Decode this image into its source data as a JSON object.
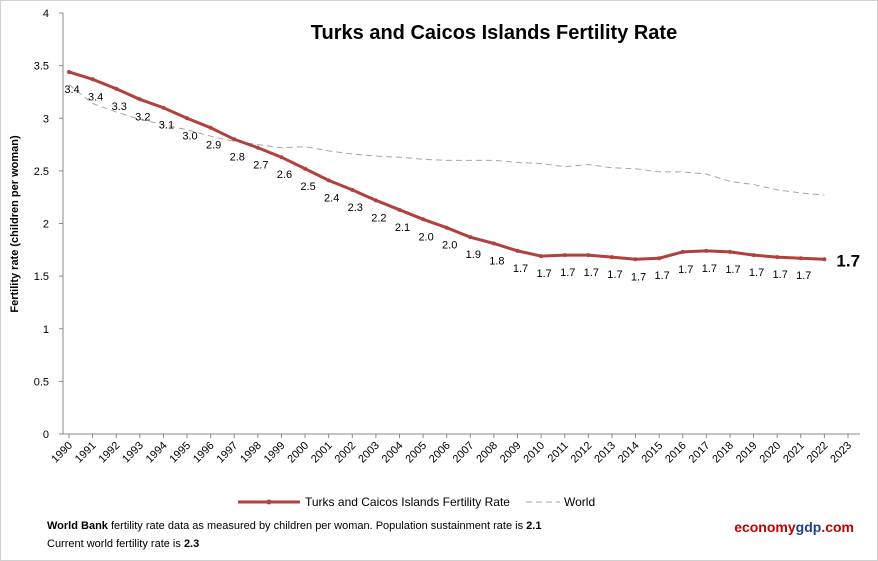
{
  "chart_data": {
    "type": "line",
    "title": "Turks and Caicos Islands Fertility Rate",
    "y_label": "Fertility rate (children per woman)",
    "x": [
      1990,
      1991,
      1992,
      1993,
      1994,
      1995,
      1996,
      1997,
      1998,
      1999,
      2000,
      2001,
      2002,
      2003,
      2004,
      2005,
      2006,
      2007,
      2008,
      2009,
      2010,
      2011,
      2012,
      2013,
      2014,
      2015,
      2016,
      2017,
      2018,
      2019,
      2020,
      2021,
      2022
    ],
    "xlim": [
      1990,
      2023
    ],
    "xticks": [
      1990,
      1991,
      1992,
      1993,
      1994,
      1995,
      1996,
      1997,
      1998,
      1999,
      2000,
      2001,
      2002,
      2003,
      2004,
      2005,
      2006,
      2007,
      2008,
      2009,
      2010,
      2011,
      2012,
      2013,
      2014,
      2015,
      2016,
      2017,
      2018,
      2019,
      2020,
      2021,
      2022,
      2023
    ],
    "ylim": [
      0,
      4
    ],
    "yticks": [
      0,
      0.5,
      1,
      1.5,
      2,
      2.5,
      3,
      3.5,
      4
    ],
    "series": [
      {
        "name": "Turks and Caicos Islands Fertility Rate",
        "color": "#b0413e",
        "values": [
          3.44,
          3.37,
          3.28,
          3.18,
          3.1,
          3.0,
          2.91,
          2.8,
          2.72,
          2.63,
          2.52,
          2.41,
          2.32,
          2.22,
          2.13,
          2.04,
          1.96,
          1.87,
          1.81,
          1.74,
          1.69,
          1.7,
          1.7,
          1.68,
          1.66,
          1.67,
          1.73,
          1.74,
          1.73,
          1.7,
          1.68,
          1.67,
          1.66
        ],
        "value_labels": [
          "3.4",
          "3.4",
          "3.3",
          "3.2",
          "3.1",
          "3.0",
          "2.9",
          "2.8",
          "2.7",
          "2.6",
          "2.5",
          "2.4",
          "2.3",
          "2.2",
          "2.1",
          "2.0",
          "2.0",
          "1.9",
          "1.8",
          "1.7",
          "1.7",
          "1.7",
          "1.7",
          "1.7",
          "1.7",
          "1.7",
          "1.7",
          "1.7",
          "1.7",
          "1.7",
          "1.7",
          "1.7",
          "1.7"
        ]
      },
      {
        "name": "World",
        "color": "#a6a6a6",
        "dashed": true,
        "values": [
          3.32,
          3.14,
          3.06,
          2.99,
          2.94,
          2.89,
          2.83,
          2.78,
          2.75,
          2.72,
          2.73,
          2.69,
          2.66,
          2.64,
          2.63,
          2.61,
          2.6,
          2.6,
          2.6,
          2.58,
          2.57,
          2.54,
          2.56,
          2.53,
          2.52,
          2.49,
          2.49,
          2.47,
          2.4,
          2.37,
          2.32,
          2.29,
          2.27
        ]
      }
    ],
    "notes": {
      "source": "World Bank",
      "line1": "fertility rate data as measured by children per woman.  Population sustainment rate is",
      "rate1": "2.1",
      "line2": "Current world fertility rate is",
      "rate2": "2.3",
      "brand": [
        "economy",
        "gdp",
        ".com"
      ]
    }
  }
}
